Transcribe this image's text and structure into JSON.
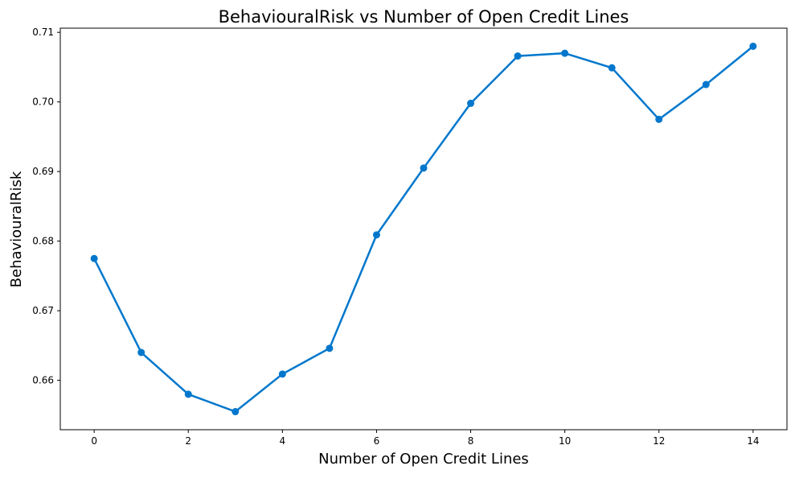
{
  "chart_data": {
    "type": "line",
    "title": "BehaviouralRisk vs Number of Open Credit Lines",
    "xlabel": "Number of Open Credit Lines",
    "ylabel": "BehaviouralRisk",
    "x": [
      0,
      1,
      2,
      3,
      4,
      5,
      6,
      7,
      8,
      9,
      10,
      11,
      12,
      13,
      14
    ],
    "series": [
      {
        "values": [
          0.6775,
          0.664,
          0.658,
          0.6555,
          0.6609,
          0.6646,
          0.6809,
          0.6905,
          0.6998,
          0.7066,
          0.707,
          0.7049,
          0.6975,
          0.7025,
          0.708
        ],
        "color": "#0077cc"
      }
    ],
    "xlim": [
      -0.72,
      14.72
    ],
    "ylim": [
      0.6529,
      0.7106
    ],
    "xticks": [
      0,
      2,
      4,
      6,
      8,
      10,
      12,
      14
    ],
    "xtick_labels": [
      "0",
      "2",
      "4",
      "6",
      "8",
      "10",
      "12",
      "14"
    ],
    "yticks": [
      0.66,
      0.67,
      0.68,
      0.69,
      0.7,
      0.71
    ],
    "ytick_labels": [
      "0.66",
      "0.67",
      "0.68",
      "0.69",
      "0.70",
      "0.71"
    ],
    "grid": false,
    "legend": "none"
  }
}
